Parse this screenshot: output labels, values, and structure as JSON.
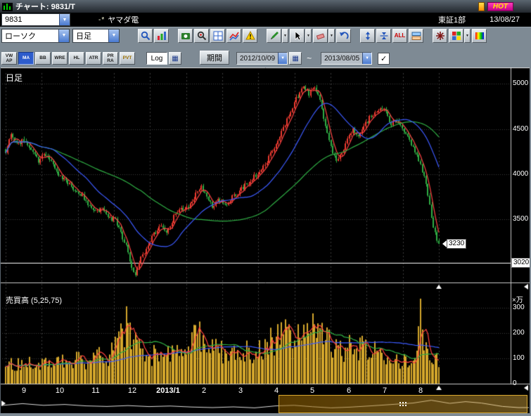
{
  "titlebar": {
    "title": "チャート: 9831/T",
    "hot_label": "HOT"
  },
  "stock_row": {
    "code": "9831",
    "marker": "-*",
    "name": "ヤマダ電",
    "market": "東証1部",
    "date": "13/08/27"
  },
  "glyphs": {
    "dropdown": "▼",
    "calendar": "▦",
    "check": "✓"
  },
  "toolbar1": {
    "chart_type_value": "ローソク",
    "timeframe_value": "日足",
    "clear_all_label": "ALL",
    "icons": [
      {
        "name": "zoom-icon"
      },
      {
        "name": "chart-settings-icon"
      },
      {
        "gap": true
      },
      {
        "name": "snapshot-icon"
      },
      {
        "name": "stock-search-icon"
      },
      {
        "name": "grid-icon"
      },
      {
        "name": "compare-icon"
      },
      {
        "name": "alert-icon"
      },
      {
        "gap": true
      },
      {
        "name": "pencil-icon",
        "dd": true
      },
      {
        "name": "cursor-icon",
        "dd": true
      },
      {
        "name": "eraser-icon",
        "dd": true
      },
      {
        "name": "undo-icon"
      },
      {
        "gap": true
      },
      {
        "name": "expand-vertical-icon"
      },
      {
        "name": "compress-vertical-icon"
      },
      {
        "name": "clear-all-button",
        "label": "ALL"
      },
      {
        "name": "link-windows-icon"
      },
      {
        "gap": true
      },
      {
        "name": "burst-icon"
      },
      {
        "name": "palette-icon",
        "dd": true
      },
      {
        "name": "gradient-icon"
      }
    ]
  },
  "toolbar2": {
    "indicators": [
      {
        "id": "vwap",
        "lines": [
          "VW",
          "AP"
        ],
        "active": false
      },
      {
        "id": "ma",
        "lines": [
          "MA"
        ],
        "active": true
      },
      {
        "id": "bb",
        "lines": [
          "BB"
        ],
        "active": false
      },
      {
        "id": "wre",
        "lines": [
          "WRE"
        ],
        "active": false
      },
      {
        "id": "hl",
        "lines": [
          "HL"
        ],
        "active": false
      },
      {
        "id": "atr",
        "lines": [
          "ATR"
        ],
        "active": false
      },
      {
        "id": "prra",
        "lines": [
          "PR",
          "RA"
        ],
        "active": false
      },
      {
        "id": "pvt",
        "lines": [
          "PVT"
        ],
        "active": false,
        "accent": true
      }
    ],
    "log_label": "Log",
    "period_label": "期間",
    "date_from": "2012/10/09",
    "date_range_separator": "~",
    "date_to": "2013/08/05"
  },
  "chart_data": {
    "type": "candlestick",
    "pane_title": "日足",
    "volume_title": "売買高 (5,25,75)",
    "volume_unit": "×万",
    "x_labels": [
      "9",
      "10",
      "11",
      "12",
      "2013/1",
      "2",
      "3",
      "4",
      "5",
      "6",
      "7",
      "8"
    ],
    "price_ticks": [
      5000,
      4500,
      4000,
      3500
    ],
    "price_min": 2800,
    "price_max": 5120,
    "hline": {
      "value": 3020,
      "label": "3020"
    },
    "last_price": 3230,
    "last_price_label": "3230",
    "volume_ticks": [
      300,
      200,
      100,
      0
    ],
    "volume_max": 360,
    "volume_spike": {
      "index": 227,
      "value": 335
    },
    "bars": 238,
    "ma_periods": {
      "short": 5,
      "mid": 25,
      "slow": 75
    },
    "price_anchors": [
      [
        0,
        4260
      ],
      [
        3,
        4420
      ],
      [
        6,
        4330
      ],
      [
        10,
        4380
      ],
      [
        14,
        4250
      ],
      [
        18,
        4150
      ],
      [
        22,
        4220
      ],
      [
        26,
        4100
      ],
      [
        30,
        3980
      ],
      [
        34,
        3900
      ],
      [
        38,
        3820
      ],
      [
        42,
        3750
      ],
      [
        46,
        3650
      ],
      [
        50,
        3580
      ],
      [
        53,
        3640
      ],
      [
        56,
        3540
      ],
      [
        60,
        3480
      ],
      [
        63,
        3350
      ],
      [
        66,
        3200
      ],
      [
        69,
        2950
      ],
      [
        71,
        2880
      ],
      [
        74,
        3080
      ],
      [
        77,
        3180
      ],
      [
        80,
        3300
      ],
      [
        84,
        3420
      ],
      [
        88,
        3380
      ],
      [
        92,
        3520
      ],
      [
        96,
        3600
      ],
      [
        100,
        3650
      ],
      [
        104,
        3780
      ],
      [
        107,
        3860
      ],
      [
        110,
        3760
      ],
      [
        113,
        3650
      ],
      [
        116,
        3720
      ],
      [
        120,
        3660
      ],
      [
        124,
        3740
      ],
      [
        128,
        3820
      ],
      [
        132,
        3900
      ],
      [
        136,
        3980
      ],
      [
        140,
        4050
      ],
      [
        144,
        4180
      ],
      [
        148,
        4330
      ],
      [
        152,
        4520
      ],
      [
        156,
        4700
      ],
      [
        160,
        4870
      ],
      [
        163,
        4960
      ],
      [
        166,
        4890
      ],
      [
        169,
        4970
      ],
      [
        172,
        4800
      ],
      [
        175,
        4550
      ],
      [
        178,
        4300
      ],
      [
        181,
        4120
      ],
      [
        184,
        4250
      ],
      [
        187,
        4400
      ],
      [
        190,
        4500
      ],
      [
        193,
        4420
      ],
      [
        196,
        4550
      ],
      [
        199,
        4620
      ],
      [
        202,
        4680
      ],
      [
        205,
        4750
      ],
      [
        208,
        4680
      ],
      [
        211,
        4560
      ],
      [
        214,
        4620
      ],
      [
        217,
        4500
      ],
      [
        220,
        4420
      ],
      [
        223,
        4300
      ],
      [
        226,
        4150
      ],
      [
        229,
        3980
      ],
      [
        232,
        3650
      ],
      [
        234,
        3400
      ],
      [
        236,
        3280
      ],
      [
        237,
        3230
      ]
    ],
    "volume_anchors": [
      [
        0,
        95
      ],
      [
        5,
        75
      ],
      [
        10,
        88
      ],
      [
        15,
        70
      ],
      [
        20,
        85
      ],
      [
        25,
        75
      ],
      [
        30,
        95
      ],
      [
        35,
        80
      ],
      [
        40,
        100
      ],
      [
        45,
        85
      ],
      [
        50,
        110
      ],
      [
        55,
        95
      ],
      [
        60,
        140
      ],
      [
        64,
        200
      ],
      [
        67,
        250
      ],
      [
        70,
        160
      ],
      [
        74,
        120
      ],
      [
        78,
        100
      ],
      [
        82,
        115
      ],
      [
        86,
        100
      ],
      [
        90,
        120
      ],
      [
        95,
        110
      ],
      [
        100,
        150
      ],
      [
        104,
        205
      ],
      [
        107,
        170
      ],
      [
        110,
        120
      ],
      [
        115,
        140
      ],
      [
        120,
        125
      ],
      [
        125,
        110
      ],
      [
        130,
        120
      ],
      [
        135,
        130
      ],
      [
        140,
        140
      ],
      [
        145,
        160
      ],
      [
        150,
        175
      ],
      [
        155,
        190
      ],
      [
        160,
        205
      ],
      [
        164,
        180
      ],
      [
        168,
        210
      ],
      [
        172,
        195
      ],
      [
        176,
        170
      ],
      [
        180,
        150
      ],
      [
        184,
        135
      ],
      [
        188,
        145
      ],
      [
        192,
        130
      ],
      [
        196,
        140
      ],
      [
        200,
        125
      ],
      [
        204,
        135
      ],
      [
        208,
        115
      ],
      [
        212,
        105
      ],
      [
        216,
        95
      ],
      [
        220,
        90
      ],
      [
        223,
        85
      ],
      [
        225,
        100
      ],
      [
        227,
        335
      ],
      [
        229,
        160
      ],
      [
        231,
        120
      ],
      [
        234,
        100
      ],
      [
        237,
        85
      ]
    ],
    "colors": {
      "up": "#ee3b30",
      "down": "#2fae44",
      "ma_short": "#ff4444",
      "ma_mid": "#3d5bff",
      "ma_slow": "#2fae44",
      "volume_bar": "#d4a72c",
      "vol_ma_short": "#ff4040",
      "vol_ma_mid": "#2fae44",
      "vol_ma_slow": "#3d5bff",
      "grid": "#3c3c3c",
      "axis_text": "#ffffff"
    },
    "navigator": {
      "points": [
        [
          0,
          0.45
        ],
        [
          0.04,
          0.58
        ],
        [
          0.08,
          0.46
        ],
        [
          0.12,
          0.52
        ],
        [
          0.16,
          0.42
        ],
        [
          0.2,
          0.38
        ],
        [
          0.24,
          0.44
        ],
        [
          0.28,
          0.37
        ],
        [
          0.32,
          0.41
        ],
        [
          0.36,
          0.34
        ],
        [
          0.4,
          0.3
        ],
        [
          0.44,
          0.35
        ],
        [
          0.48,
          0.28
        ],
        [
          0.52,
          0.42
        ],
        [
          0.555,
          0.46
        ],
        [
          0.59,
          0.36
        ],
        [
          0.625,
          0.28
        ],
        [
          0.66,
          0.33
        ],
        [
          0.7,
          0.42
        ],
        [
          0.74,
          0.52
        ],
        [
          0.78,
          0.62
        ],
        [
          0.815,
          0.82
        ],
        [
          0.85,
          0.6
        ],
        [
          0.88,
          0.72
        ],
        [
          0.91,
          0.62
        ],
        [
          0.95,
          0.38
        ],
        [
          0.98,
          0.3
        ],
        [
          1,
          0.3
        ]
      ],
      "window_start": 0.524,
      "window_end": 0.993
    }
  }
}
